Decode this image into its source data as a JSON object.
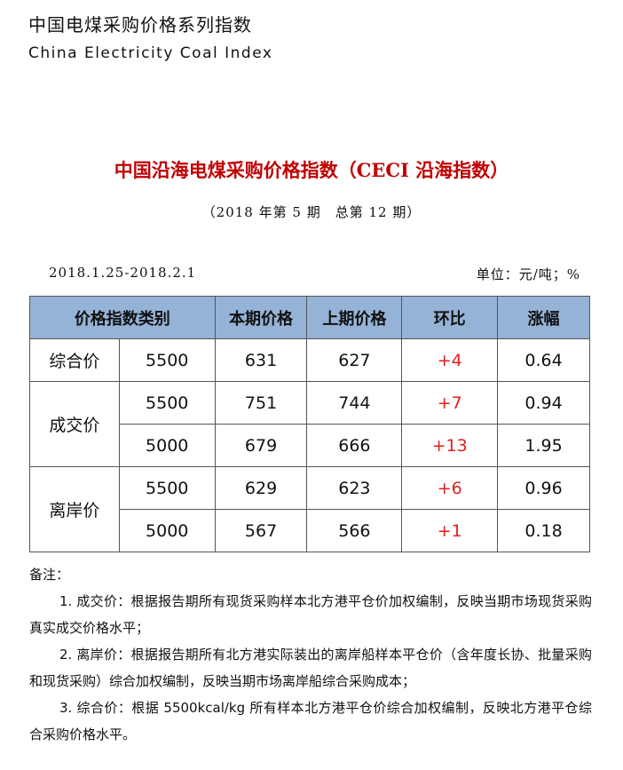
{
  "header": {
    "title_cn": "中国电煤采购价格系列指数",
    "title_en": "China Electricity Coal Index"
  },
  "report": {
    "title": "中国沿海电煤采购价格指数（CECI 沿海指数）",
    "issue": "（2018 年第 5 期　总第 12 期）",
    "date_range": "2018.1.25-2018.2.1",
    "unit": "单位：元/吨；%"
  },
  "table": {
    "headers": [
      "价格指数类别",
      "本期价格",
      "上期价格",
      "环比",
      "涨幅"
    ],
    "groups": [
      {
        "category": "综合价",
        "rows": [
          {
            "grade": "5500",
            "current": "631",
            "previous": "627",
            "change": "+4",
            "pct": "0.64"
          }
        ]
      },
      {
        "category": "成交价",
        "rows": [
          {
            "grade": "5500",
            "current": "751",
            "previous": "744",
            "change": "+7",
            "pct": "0.94"
          },
          {
            "grade": "5000",
            "current": "679",
            "previous": "666",
            "change": "+13",
            "pct": "1.95"
          }
        ]
      },
      {
        "category": "离岸价",
        "rows": [
          {
            "grade": "5500",
            "current": "629",
            "previous": "623",
            "change": "+6",
            "pct": "0.96"
          },
          {
            "grade": "5000",
            "current": "567",
            "previous": "566",
            "change": "+1",
            "pct": "0.18"
          }
        ]
      }
    ]
  },
  "notes": {
    "heading": "备注：",
    "items": [
      "1. 成交价：根据报告期所有现货采购样本北方港平仓价加权编制，反映当期市场现货采购真实成交价格水平；",
      "2. 离岸价：根据报告期所有北方港实际装出的离岸船样本平仓价（含年度长协、批量采购和现货采购）综合加权编制，反映当期市场离岸船综合采购成本；",
      "3. 综合价：根据 5500kcal/kg 所有样本北方港平仓价综合加权编制，反映北方港平仓综合采购价格水平。"
    ]
  },
  "colors": {
    "header_bg": "#95b3d7",
    "title": "#c00000",
    "change": "#e02020"
  }
}
